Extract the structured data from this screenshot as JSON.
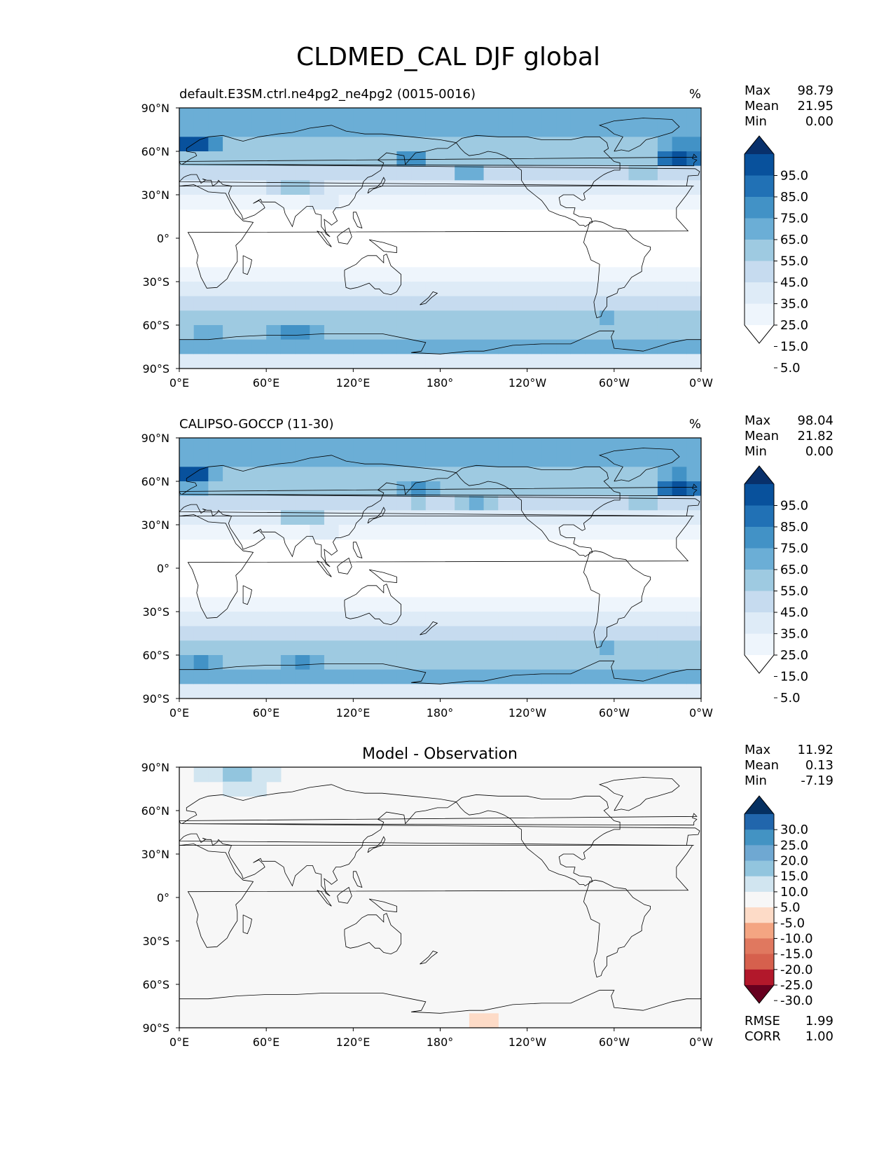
{
  "figure": {
    "title": "CLDMED_CAL DJF global"
  },
  "axes": {
    "lat_ticks": [
      "90°N",
      "60°N",
      "30°N",
      "0°",
      "30°S",
      "60°S",
      "90°S"
    ],
    "lon_ticks": [
      "0°E",
      "60°E",
      "120°E",
      "180°",
      "120°W",
      "60°W",
      "0°W"
    ]
  },
  "panels": [
    {
      "name": "test",
      "title_left": "default.E3SM.ctrl.ne4pg2_ne4pg2 (0015-0016)",
      "units": "%",
      "stats": [
        {
          "label": "Max",
          "value": "98.79"
        },
        {
          "label": "Mean",
          "value": "21.95"
        },
        {
          "label": "Min",
          "value": "0.00"
        }
      ],
      "colorbar": {
        "labels": [
          "95.0",
          "85.0",
          "75.0",
          "65.0",
          "55.0",
          "45.0",
          "35.0",
          "25.0",
          "15.0",
          "5.0"
        ],
        "colors": [
          "#08306b",
          "#08519c",
          "#2171b5",
          "#4292c6",
          "#6baed6",
          "#9ecae1",
          "#c6dbef",
          "#deebf7",
          "#eef5fc",
          "#ffffff"
        ]
      },
      "field": [
        {
          "lon": 10,
          "lat": 65,
          "amp": 95,
          "rx": 25,
          "ry": 12
        },
        {
          "lon": 40,
          "lat": 50,
          "amp": 55,
          "rx": 30,
          "ry": 10
        },
        {
          "lon": 80,
          "lat": 38,
          "amp": 60,
          "rx": 30,
          "ry": 10
        },
        {
          "lon": 100,
          "lat": 30,
          "amp": 70,
          "rx": 10,
          "ry": 6
        },
        {
          "lon": 160,
          "lat": 52,
          "amp": 75,
          "rx": 28,
          "ry": 10
        },
        {
          "lon": 200,
          "lat": 45,
          "amp": 60,
          "rx": 25,
          "ry": 10
        },
        {
          "lon": 230,
          "lat": 40,
          "amp": 45,
          "rx": 25,
          "ry": 8
        },
        {
          "lon": 345,
          "lat": 58,
          "amp": 98,
          "rx": 25,
          "ry": 12
        },
        {
          "lon": 320,
          "lat": 45,
          "amp": 55,
          "rx": 20,
          "ry": 10
        },
        {
          "lon": 20,
          "lat": -62,
          "amp": 72,
          "rx": 40,
          "ry": 8
        },
        {
          "lon": 80,
          "lat": -65,
          "amp": 72,
          "rx": 35,
          "ry": 8
        },
        {
          "lon": 180,
          "lat": -60,
          "amp": 62,
          "rx": 30,
          "ry": 8
        },
        {
          "lon": 295,
          "lat": -58,
          "amp": 72,
          "rx": 20,
          "ry": 8
        },
        {
          "lon": 350,
          "lat": -62,
          "amp": 60,
          "rx": 15,
          "ry": 8
        }
      ]
    },
    {
      "name": "reference",
      "title_left": "CALIPSO-GOCCP (11-30)",
      "units": "%",
      "stats": [
        {
          "label": "Max",
          "value": "98.04"
        },
        {
          "label": "Mean",
          "value": "21.82"
        },
        {
          "label": "Min",
          "value": "0.00"
        }
      ],
      "colorbar": {
        "labels": [
          "95.0",
          "85.0",
          "75.0",
          "65.0",
          "55.0",
          "45.0",
          "35.0",
          "25.0",
          "15.0",
          "5.0"
        ],
        "colors": [
          "#08306b",
          "#08519c",
          "#2171b5",
          "#4292c6",
          "#6baed6",
          "#9ecae1",
          "#c6dbef",
          "#deebf7",
          "#eef5fc",
          "#ffffff"
        ]
      },
      "field": [
        {
          "lon": 10,
          "lat": 63,
          "amp": 92,
          "rx": 25,
          "ry": 12
        },
        {
          "lon": 45,
          "lat": 50,
          "amp": 55,
          "rx": 30,
          "ry": 10
        },
        {
          "lon": 85,
          "lat": 38,
          "amp": 58,
          "rx": 30,
          "ry": 10
        },
        {
          "lon": 100,
          "lat": 30,
          "amp": 72,
          "rx": 10,
          "ry": 6
        },
        {
          "lon": 165,
          "lat": 52,
          "amp": 75,
          "rx": 28,
          "ry": 10
        },
        {
          "lon": 205,
          "lat": 45,
          "amp": 58,
          "rx": 25,
          "ry": 10
        },
        {
          "lon": 345,
          "lat": 58,
          "amp": 98,
          "rx": 25,
          "ry": 12
        },
        {
          "lon": 320,
          "lat": 45,
          "amp": 55,
          "rx": 20,
          "ry": 10
        },
        {
          "lon": 15,
          "lat": -68,
          "amp": 80,
          "rx": 35,
          "ry": 8
        },
        {
          "lon": 85,
          "lat": -65,
          "amp": 70,
          "rx": 35,
          "ry": 8
        },
        {
          "lon": 182,
          "lat": -60,
          "amp": 62,
          "rx": 30,
          "ry": 8
        },
        {
          "lon": 295,
          "lat": -58,
          "amp": 72,
          "rx": 20,
          "ry": 8
        },
        {
          "lon": 350,
          "lat": -62,
          "amp": 60,
          "rx": 15,
          "ry": 8
        }
      ]
    },
    {
      "name": "difference",
      "title_center": "Model - Observation",
      "stats": [
        {
          "label": "Max",
          "value": "11.92"
        },
        {
          "label": "Mean",
          "value": "0.13"
        },
        {
          "label": "Min",
          "value": "-7.19"
        }
      ],
      "colorbar": {
        "labels": [
          "30.0",
          "25.0",
          "20.0",
          "15.0",
          "10.0",
          "5.0",
          "-5.0",
          "-10.0",
          "-15.0",
          "-20.0",
          "-25.0",
          "-30.0"
        ],
        "colors": [
          "#053061",
          "#2166ac",
          "#4393c3",
          "#6fa8d2",
          "#92c5de",
          "#d1e5f0",
          "#f7f7f7",
          "#fddbc7",
          "#f4a582",
          "#e0785f",
          "#d6604d",
          "#b2182b",
          "#67001f"
        ]
      },
      "bottom_stats": [
        {
          "label": "RMSE",
          "value": "1.99"
        },
        {
          "label": "CORR",
          "value": "1.00"
        }
      ],
      "field": [
        {
          "lon": 40,
          "lat": 82,
          "amp": 11.9,
          "rx": 30,
          "ry": 8
        },
        {
          "lon": 50,
          "lat": 70,
          "amp": 6,
          "rx": 18,
          "ry": 5
        },
        {
          "lon": 200,
          "lat": 62,
          "amp": -6,
          "rx": 5,
          "ry": 3
        },
        {
          "lon": 232,
          "lat": 35,
          "amp": -6,
          "rx": 5,
          "ry": 2
        },
        {
          "lon": 210,
          "lat": -82,
          "amp": -7.2,
          "rx": 30,
          "ry": 6
        },
        {
          "lon": 150,
          "lat": -70,
          "amp": -6,
          "rx": 5,
          "ry": 2
        },
        {
          "lon": 290,
          "lat": -55,
          "amp": 6,
          "rx": 8,
          "ry": 3
        },
        {
          "lon": 330,
          "lat": -70,
          "amp": 6,
          "rx": 12,
          "ry": 4
        },
        {
          "lon": 280,
          "lat": 60,
          "amp": 6,
          "rx": 4,
          "ry": 2
        }
      ]
    }
  ]
}
